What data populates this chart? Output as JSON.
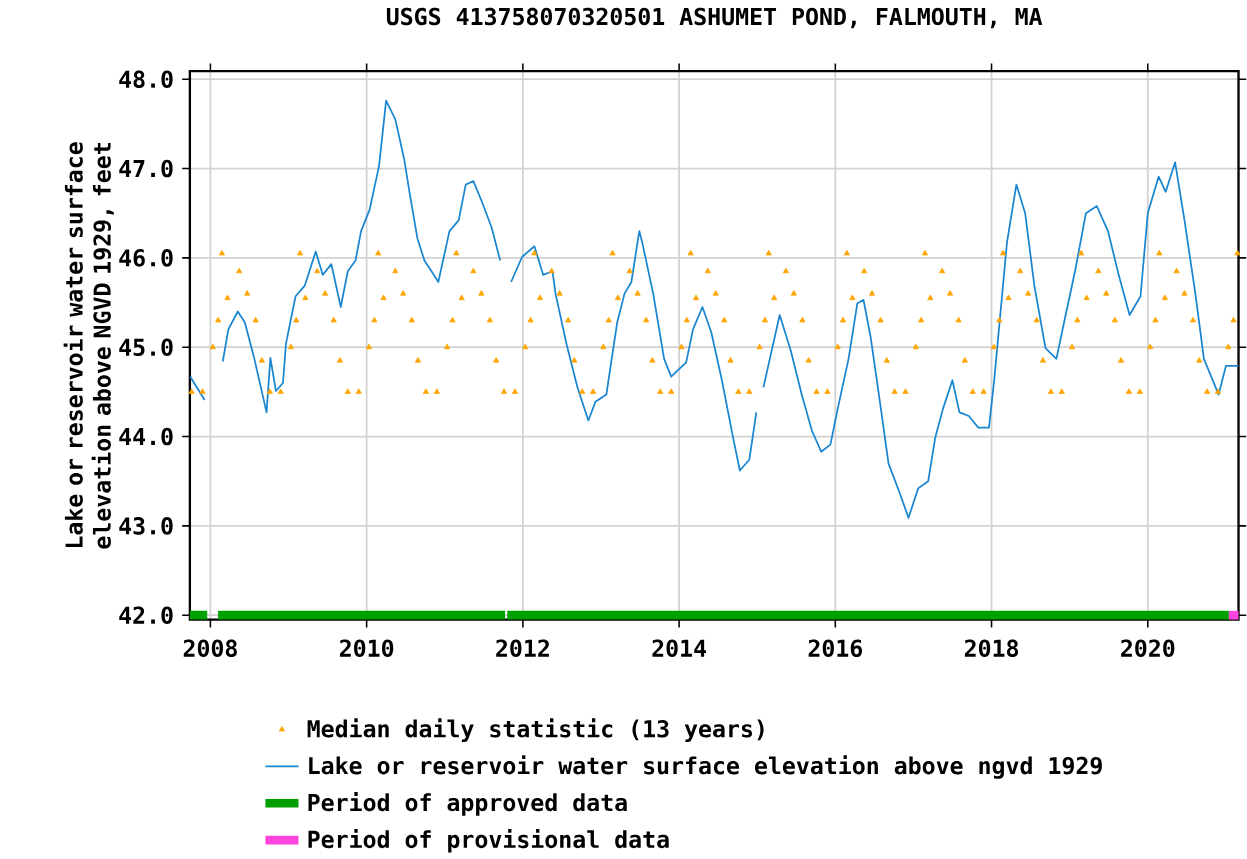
{
  "chart_data": {
    "type": "line",
    "title": "USGS 413758070320501 ASHUMET POND, FALMOUTH, MA",
    "ylabel": "Lake or reservoir water surface elevation above NGVD 1929, feet",
    "xlim": [
      "2007-09-27",
      "2021-03-01"
    ],
    "xticks": [
      "2008",
      "2010",
      "2012",
      "2014",
      "2016",
      "2018",
      "2020"
    ],
    "ylim": [
      41.95,
      48.09
    ],
    "yticks": [
      {
        "value": 42,
        "label": "42.0"
      },
      {
        "value": 43,
        "label": "43.0"
      },
      {
        "value": 44,
        "label": "44.0"
      },
      {
        "value": 45,
        "label": "45.0"
      },
      {
        "value": 46,
        "label": "46.0"
      },
      {
        "value": 47,
        "label": "47.0"
      },
      {
        "value": 48,
        "label": "48.0"
      }
    ],
    "grid": true,
    "legend": "bottom",
    "series": [
      {
        "name": "Median daily statistic (13 years)",
        "type": "scatter",
        "marker": "triangle",
        "color": "#ffa500",
        "x": [
          "2007-10-05",
          "2007-11-25",
          "2008-01-12",
          "2008-02-06",
          "2008-02-24",
          "2008-03-21",
          "2008-05-15",
          "2008-06-21",
          "2008-07-31",
          "2008-08-29",
          "2008-10-05",
          "2008-11-25",
          "2009-01-12",
          "2009-02-06",
          "2009-02-24",
          "2009-03-21",
          "2009-05-15",
          "2009-06-21",
          "2009-07-31",
          "2009-08-29",
          "2009-10-05",
          "2009-11-25",
          "2010-01-12",
          "2010-02-06",
          "2010-02-24",
          "2010-03-21",
          "2010-05-15",
          "2010-06-21",
          "2010-07-31",
          "2010-08-29",
          "2010-10-05",
          "2010-11-25",
          "2011-01-12",
          "2011-02-06",
          "2011-02-24",
          "2011-03-21",
          "2011-05-15",
          "2011-06-21",
          "2011-07-31",
          "2011-08-29",
          "2011-10-05",
          "2011-11-25",
          "2012-01-12",
          "2012-02-06",
          "2012-02-24",
          "2012-03-21",
          "2012-05-15",
          "2012-06-21",
          "2012-07-31",
          "2012-08-29",
          "2012-10-05",
          "2012-11-25",
          "2013-01-12",
          "2013-02-06",
          "2013-02-24",
          "2013-03-21",
          "2013-05-15",
          "2013-06-21",
          "2013-07-31",
          "2013-08-29",
          "2013-10-05",
          "2013-11-25",
          "2014-01-12",
          "2014-02-06",
          "2014-02-24",
          "2014-03-21",
          "2014-05-15",
          "2014-06-21",
          "2014-07-31",
          "2014-08-29",
          "2014-10-05",
          "2014-11-25",
          "2015-01-12",
          "2015-02-06",
          "2015-02-24",
          "2015-03-21",
          "2015-05-15",
          "2015-06-21",
          "2015-07-31",
          "2015-08-29",
          "2015-10-05",
          "2015-11-25",
          "2016-01-12",
          "2016-02-06",
          "2016-02-24",
          "2016-03-21",
          "2016-05-15",
          "2016-06-21",
          "2016-07-31",
          "2016-08-29",
          "2016-10-05",
          "2016-11-25",
          "2017-01-12",
          "2017-02-06",
          "2017-02-24",
          "2017-03-21",
          "2017-05-15",
          "2017-06-21",
          "2017-07-31",
          "2017-08-29",
          "2017-10-05",
          "2017-11-25",
          "2018-01-12",
          "2018-02-06",
          "2018-02-24",
          "2018-03-21",
          "2018-05-15",
          "2018-06-21",
          "2018-07-31",
          "2018-08-29",
          "2018-10-05",
          "2018-11-25",
          "2019-01-12",
          "2019-02-06",
          "2019-02-24",
          "2019-03-21",
          "2019-05-15",
          "2019-06-21",
          "2019-07-31",
          "2019-08-29",
          "2019-10-05",
          "2019-11-25",
          "2020-01-12",
          "2020-02-06",
          "2020-02-24",
          "2020-03-21",
          "2020-05-15",
          "2020-06-21",
          "2020-07-31",
          "2020-08-29",
          "2020-10-05",
          "2020-11-25",
          "2021-01-12",
          "2021-02-06",
          "2021-02-24"
        ],
        "values": [
          44.5,
          44.5,
          45.0,
          45.3,
          46.05,
          45.55,
          45.85,
          45.6,
          45.3,
          44.85,
          44.5,
          44.5,
          45.0,
          45.3,
          46.05,
          45.55,
          45.85,
          45.6,
          45.3,
          44.85,
          44.5,
          44.5,
          45.0,
          45.3,
          46.05,
          45.55,
          45.85,
          45.6,
          45.3,
          44.85,
          44.5,
          44.5,
          45.0,
          45.3,
          46.05,
          45.55,
          45.85,
          45.6,
          45.3,
          44.85,
          44.5,
          44.5,
          45.0,
          45.3,
          46.05,
          45.55,
          45.85,
          45.6,
          45.3,
          44.85,
          44.5,
          44.5,
          45.0,
          45.3,
          46.05,
          45.55,
          45.85,
          45.6,
          45.3,
          44.85,
          44.5,
          44.5,
          45.0,
          45.3,
          46.05,
          45.55,
          45.85,
          45.6,
          45.3,
          44.85,
          44.5,
          44.5,
          45.0,
          45.3,
          46.05,
          45.55,
          45.85,
          45.6,
          45.3,
          44.85,
          44.5,
          44.5,
          45.0,
          45.3,
          46.05,
          45.55,
          45.85,
          45.6,
          45.3,
          44.85,
          44.5,
          44.5,
          45.0,
          45.3,
          46.05,
          45.55,
          45.85,
          45.6,
          45.3,
          44.85,
          44.5,
          44.5,
          45.0,
          45.3,
          46.05,
          45.55,
          45.85,
          45.6,
          45.3,
          44.85,
          44.5,
          44.5,
          45.0,
          45.3,
          46.05,
          45.55,
          45.85,
          45.6,
          45.3,
          44.85,
          44.5,
          44.5,
          45.0,
          45.3,
          46.05,
          45.55,
          45.85,
          45.6,
          45.3,
          44.85,
          44.5,
          44.5,
          45.0,
          45.3,
          46.05
        ]
      },
      {
        "name": "Lake or reservoir water surface elevation above ngvd 1929",
        "type": "line",
        "marker": "none",
        "color": "#1a86d0",
        "x": [
          "2007-09-29",
          "2007-12-05",
          "2008-01-15",
          "2008-02-28",
          "2008-03-25",
          "2008-05-08",
          "2008-06-10",
          "2008-07-24",
          "2008-09-20",
          "2008-10-08",
          "2008-11-03",
          "2008-12-06",
          "2008-12-20",
          "2009-02-03",
          "2009-03-18",
          "2009-05-08",
          "2009-06-10",
          "2009-07-20",
          "2009-09-02",
          "2009-10-05",
          "2009-11-10",
          "2009-12-06",
          "2010-01-15",
          "2010-02-28",
          "2010-04-02",
          "2010-05-15",
          "2010-06-25",
          "2010-07-20",
          "2010-08-26",
          "2010-09-28",
          "2010-10-31",
          "2010-12-02",
          "2011-01-23",
          "2011-03-07",
          "2011-04-09",
          "2011-05-15",
          "2011-06-25",
          "2011-08-08",
          "2011-09-17",
          "2011-10-20",
          "2011-11-07",
          "2011-12-28",
          "2012-02-24",
          "2012-04-05",
          "2012-05-19",
          "2012-06-02",
          "2012-07-24",
          "2012-09-13",
          "2012-11-03",
          "2012-12-06",
          "2013-01-26",
          "2013-03-18",
          "2013-04-21",
          "2013-05-23",
          "2013-06-29",
          "2013-07-13",
          "2013-09-02",
          "2013-10-23",
          "2013-11-25",
          "2014-02-03",
          "2014-03-07",
          "2014-04-20",
          "2014-05-31",
          "2014-07-20",
          "2014-09-10",
          "2014-10-12",
          "2014-11-25",
          "2014-12-28",
          "2015-01-15",
          "2015-01-30",
          "2015-04-16",
          "2015-06-07",
          "2015-07-28",
          "2015-09-13",
          "2015-10-27",
          "2015-12-09",
          "2016-01-12",
          "2016-03-03",
          "2016-04-13",
          "2016-05-12",
          "2016-06-14",
          "2016-08-04",
          "2016-09-06",
          "2016-10-27",
          "2016-12-09",
          "2017-01-23",
          "2017-03-11",
          "2017-04-13",
          "2017-05-19",
          "2017-07-02",
          "2017-08-04",
          "2017-09-17",
          "2017-10-31",
          "2017-12-20",
          "2018-01-15",
          "2018-03-14",
          "2018-04-27",
          "2018-06-07",
          "2018-07-20",
          "2018-09-10",
          "2018-10-31",
          "2018-12-06",
          "2019-01-26",
          "2019-03-18",
          "2019-05-08",
          "2019-06-29",
          "2019-08-18",
          "2019-10-08",
          "2019-11-28",
          "2020-01-01",
          "2020-02-21",
          "2020-03-25",
          "2020-05-08",
          "2020-06-21",
          "2020-08-11",
          "2020-09-20",
          "2020-11-28",
          "2021-01-01",
          "2021-02-28"
        ],
        "values": [
          44.67,
          44.41,
          null,
          44.84,
          45.2,
          45.4,
          45.28,
          44.88,
          44.27,
          44.88,
          44.51,
          44.6,
          45.04,
          45.57,
          45.69,
          46.07,
          45.81,
          45.93,
          45.45,
          45.85,
          45.97,
          46.3,
          46.54,
          47.03,
          47.76,
          47.55,
          47.11,
          46.74,
          46.22,
          45.97,
          45.85,
          45.73,
          46.3,
          46.42,
          46.82,
          46.86,
          46.62,
          46.34,
          45.97,
          null,
          45.73,
          46.01,
          46.13,
          45.81,
          45.85,
          45.6,
          45.03,
          44.55,
          44.18,
          44.39,
          44.47,
          45.28,
          45.6,
          45.73,
          46.3,
          46.17,
          45.6,
          44.87,
          44.67,
          44.83,
          45.2,
          45.45,
          45.17,
          44.63,
          43.99,
          43.62,
          43.74,
          44.27,
          null,
          44.55,
          45.36,
          44.96,
          44.47,
          44.07,
          43.83,
          43.91,
          44.31,
          44.87,
          45.49,
          45.53,
          45.12,
          44.27,
          43.7,
          43.38,
          43.09,
          43.42,
          43.5,
          43.99,
          44.31,
          44.63,
          44.27,
          44.23,
          44.1,
          44.1,
          44.67,
          46.17,
          46.82,
          46.5,
          45.69,
          44.99,
          44.87,
          45.28,
          45.85,
          46.5,
          46.58,
          46.3,
          45.81,
          45.36,
          45.57,
          46.5,
          46.91,
          46.74,
          47.07,
          46.42,
          45.6,
          44.87,
          44.47,
          44.79,
          44.79
        ]
      },
      {
        "name": "Period of approved data",
        "type": "line",
        "marker": "none",
        "color": "#00a000",
        "x": [
          "2007-09-27",
          "2007-12-17",
          "2008-01-10",
          "2008-02-06",
          "2011-10-10",
          "2011-10-15",
          "2011-10-20",
          "2021-01-15"
        ],
        "values": [
          42,
          42,
          null,
          42,
          42,
          null,
          42,
          42
        ]
      },
      {
        "name": "Period of provisional data",
        "type": "line",
        "marker": "none",
        "color": "#ff44dd",
        "x": [
          "2021-01-15",
          "2021-03-01"
        ],
        "values": [
          42,
          42
        ]
      }
    ]
  }
}
